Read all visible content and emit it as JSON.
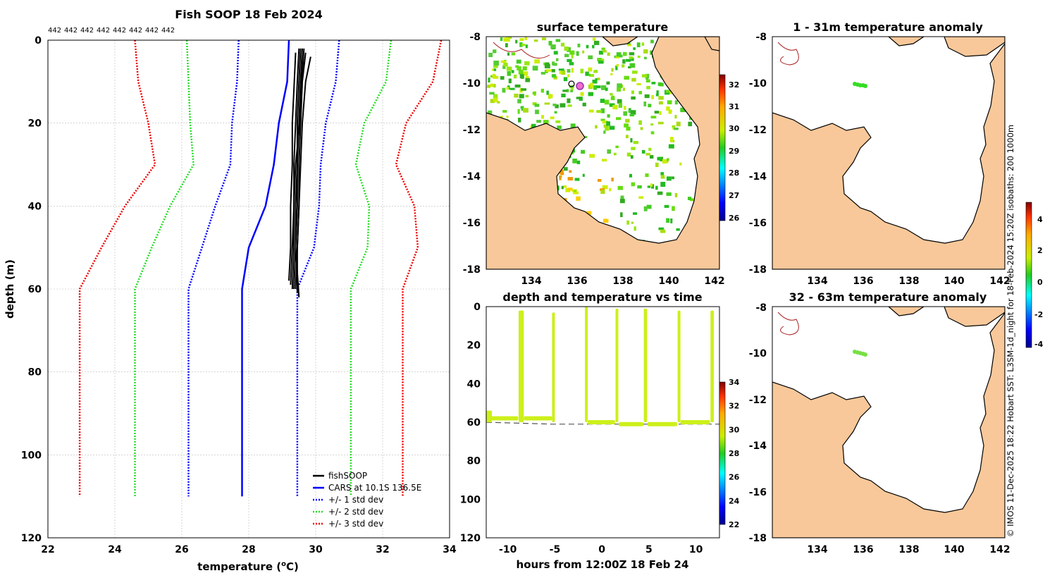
{
  "colors": {
    "fishSOOP": "#000000",
    "cars": "#0000ff",
    "std1": "#0000ff",
    "std2": "#22dd22",
    "std3": "#ee0000",
    "land": "#f8c89a",
    "timeseries": "#ccf01a",
    "swath": "#44cc22",
    "marker": "#dd44bb"
  },
  "credit": "© IMOS 11-Dec-2025 18:22 Hobart SST: L3SM-1d_night for 18-Feb-2024 15:20Z isobaths: 200  1000m",
  "chart_data": [
    {
      "type": "line",
      "title": "Fish SOOP 18 Feb 2024",
      "header_labels": [
        "442",
        "442",
        "442",
        "442",
        "442",
        "442",
        "442",
        "442"
      ],
      "xlabel": "temperature (",
      "xlabel_sup": "o",
      "xlabel_unit": "C)",
      "ylabel": "depth (m)",
      "xlim": [
        22,
        34
      ],
      "ylim": [
        0,
        120
      ],
      "y_reversed": true,
      "xticks": [
        "22",
        "24",
        "26",
        "28",
        "30",
        "32",
        "34"
      ],
      "yticks": [
        "0",
        "20",
        "40",
        "60",
        "80",
        "100",
        "120"
      ],
      "grid": true,
      "legend_position": "bottom-right",
      "depth": [
        0,
        10,
        20,
        30,
        40,
        50,
        60,
        110
      ],
      "series": [
        {
          "name": "+/- 3 std dev",
          "style": "dotted",
          "color_key": "std3",
          "lower": [
            24.6,
            24.7,
            25.0,
            25.2,
            24.3,
            23.6,
            22.95,
            22.95
          ],
          "upper": [
            33.75,
            33.5,
            32.7,
            32.4,
            32.95,
            33.05,
            32.6,
            32.6
          ]
        },
        {
          "name": "+/- 2 std dev",
          "style": "dotted",
          "color_key": "std2",
          "lower": [
            26.15,
            26.2,
            26.25,
            26.35,
            25.65,
            25.1,
            24.6,
            24.6
          ],
          "upper": [
            32.25,
            32.1,
            31.45,
            31.2,
            31.6,
            31.55,
            31.05,
            31.05
          ]
        },
        {
          "name": "+/- 1 std dev",
          "style": "dotted",
          "color_key": "std1",
          "lower": [
            27.7,
            27.65,
            27.5,
            27.45,
            27.0,
            26.6,
            26.2,
            26.2
          ],
          "upper": [
            30.7,
            30.6,
            30.3,
            30.15,
            30.1,
            29.95,
            29.45,
            29.45
          ]
        },
        {
          "name": "CARS at 10.1S 136.5E",
          "style": "solid",
          "color_key": "cars",
          "values": [
            29.2,
            29.15,
            28.9,
            28.75,
            28.5,
            28.0,
            27.8,
            27.8
          ]
        }
      ],
      "fishSOOP_profiles": [
        {
          "depth": [
            2,
            10,
            20,
            30,
            40,
            50,
            59
          ],
          "temp": [
            29.5,
            29.45,
            29.4,
            29.35,
            29.35,
            29.3,
            29.25
          ]
        },
        {
          "depth": [
            2,
            10,
            20,
            30,
            40,
            50,
            60
          ],
          "temp": [
            29.6,
            29.55,
            29.5,
            29.45,
            29.45,
            29.4,
            29.35
          ]
        },
        {
          "depth": [
            3,
            10,
            20,
            30,
            40,
            50,
            61
          ],
          "temp": [
            29.7,
            29.6,
            29.55,
            29.5,
            29.5,
            29.45,
            29.45
          ]
        },
        {
          "depth": [
            2,
            10,
            20,
            30,
            40,
            50,
            62
          ],
          "temp": [
            29.55,
            29.5,
            29.45,
            29.45,
            29.4,
            29.4,
            29.5
          ]
        },
        {
          "depth": [
            4,
            10,
            20,
            30,
            40,
            50,
            60
          ],
          "temp": [
            29.85,
            29.7,
            29.6,
            29.55,
            29.5,
            29.45,
            29.4
          ]
        },
        {
          "depth": [
            3,
            12,
            20,
            30,
            40,
            50,
            58
          ],
          "temp": [
            29.4,
            29.35,
            29.3,
            29.3,
            29.25,
            29.25,
            29.2
          ]
        },
        {
          "depth": [
            2,
            8,
            18,
            30,
            40,
            50,
            60
          ],
          "temp": [
            29.65,
            29.6,
            29.55,
            29.4,
            29.35,
            29.35,
            29.3
          ]
        }
      ],
      "legend_labels": [
        "fishSOOP",
        "CARS at 10.1S 136.5E",
        "+/- 1 std dev",
        "+/- 2 std dev",
        "+/- 3 std dev"
      ]
    },
    {
      "type": "heatmap",
      "title": "surface temperature",
      "x_range": [
        132.5,
        142.7
      ],
      "y_range": [
        -18,
        -8
      ],
      "xticks": [
        "134",
        "136",
        "138",
        "140",
        "142"
      ],
      "yticks": [
        "-8",
        "-10",
        "-12",
        "-14",
        "-16",
        "-18"
      ],
      "colorbar_range": [
        26,
        32.5
      ],
      "colorbar_ticks": [
        "26",
        "27",
        "28",
        "29",
        "30",
        "31",
        "32"
      ],
      "marker": {
        "lon": 136.5,
        "lat": -10.1
      }
    },
    {
      "type": "scatter",
      "title": "depth and temperature vs time",
      "xlabel": "hours from 12:00Z 18 Feb 24",
      "x_range": [
        -12.3,
        12.5
      ],
      "y_range": [
        0,
        120
      ],
      "y_reversed": true,
      "xticks": [
        "-10",
        "-5",
        "0",
        "5",
        "10"
      ],
      "yticks": [
        "0",
        "20",
        "40",
        "60",
        "80",
        "100",
        "120"
      ],
      "colorbar_range": [
        22,
        34
      ],
      "colorbar_ticks": [
        "22",
        "24",
        "26",
        "28",
        "30",
        "32",
        "34"
      ],
      "bottom_depth": [
        [
          -12.3,
          60
        ],
        [
          -5.3,
          61
        ],
        [
          -1.5,
          61
        ],
        [
          12.5,
          61
        ]
      ],
      "dives": [
        {
          "start": -12.3,
          "end": -8.9,
          "min_depth": 58
        },
        {
          "start": -8.85,
          "end": -8.3,
          "min_depth": 2
        },
        {
          "start": -8.3,
          "end": -5.3,
          "min_depth": 58
        },
        {
          "start": -5.3,
          "end": -5.0,
          "min_depth": 3
        },
        {
          "start": -1.8,
          "end": -1.55,
          "min_depth": 0
        },
        {
          "start": -1.5,
          "end": 1.4,
          "min_depth": 60
        },
        {
          "start": 1.45,
          "end": 1.75,
          "min_depth": 1
        },
        {
          "start": 1.8,
          "end": 4.4,
          "min_depth": 61
        },
        {
          "start": 4.45,
          "end": 4.8,
          "min_depth": 1
        },
        {
          "start": 4.85,
          "end": 8.0,
          "min_depth": 61
        },
        {
          "start": 8.05,
          "end": 8.3,
          "min_depth": 2
        },
        {
          "start": 8.35,
          "end": 11.5,
          "min_depth": 60
        },
        {
          "start": 11.55,
          "end": 11.9,
          "min_depth": 2
        }
      ]
    },
    {
      "type": "heatmap",
      "title": "1 - 31m temperature anomaly",
      "x_range": [
        132.5,
        142.7
      ],
      "y_range": [
        -18,
        -8
      ],
      "xticks": [
        "134",
        "136",
        "138",
        "140",
        "142"
      ],
      "yticks": [
        "-8",
        "-10",
        "-12",
        "-14",
        "-16",
        "-18"
      ]
    },
    {
      "type": "heatmap",
      "title": "32 - 63m temperature anomaly",
      "x_range": [
        132.5,
        142.7
      ],
      "y_range": [
        -18,
        -8
      ],
      "xticks": [
        "134",
        "136",
        "138",
        "140",
        "142"
      ],
      "yticks": [
        "-8",
        "-10",
        "-12",
        "-14",
        "-16",
        "-18"
      ],
      "colorbar_range": [
        -4.3,
        5
      ],
      "colorbar_ticks": [
        "-4",
        "-2",
        "0",
        "2",
        "4"
      ]
    }
  ]
}
